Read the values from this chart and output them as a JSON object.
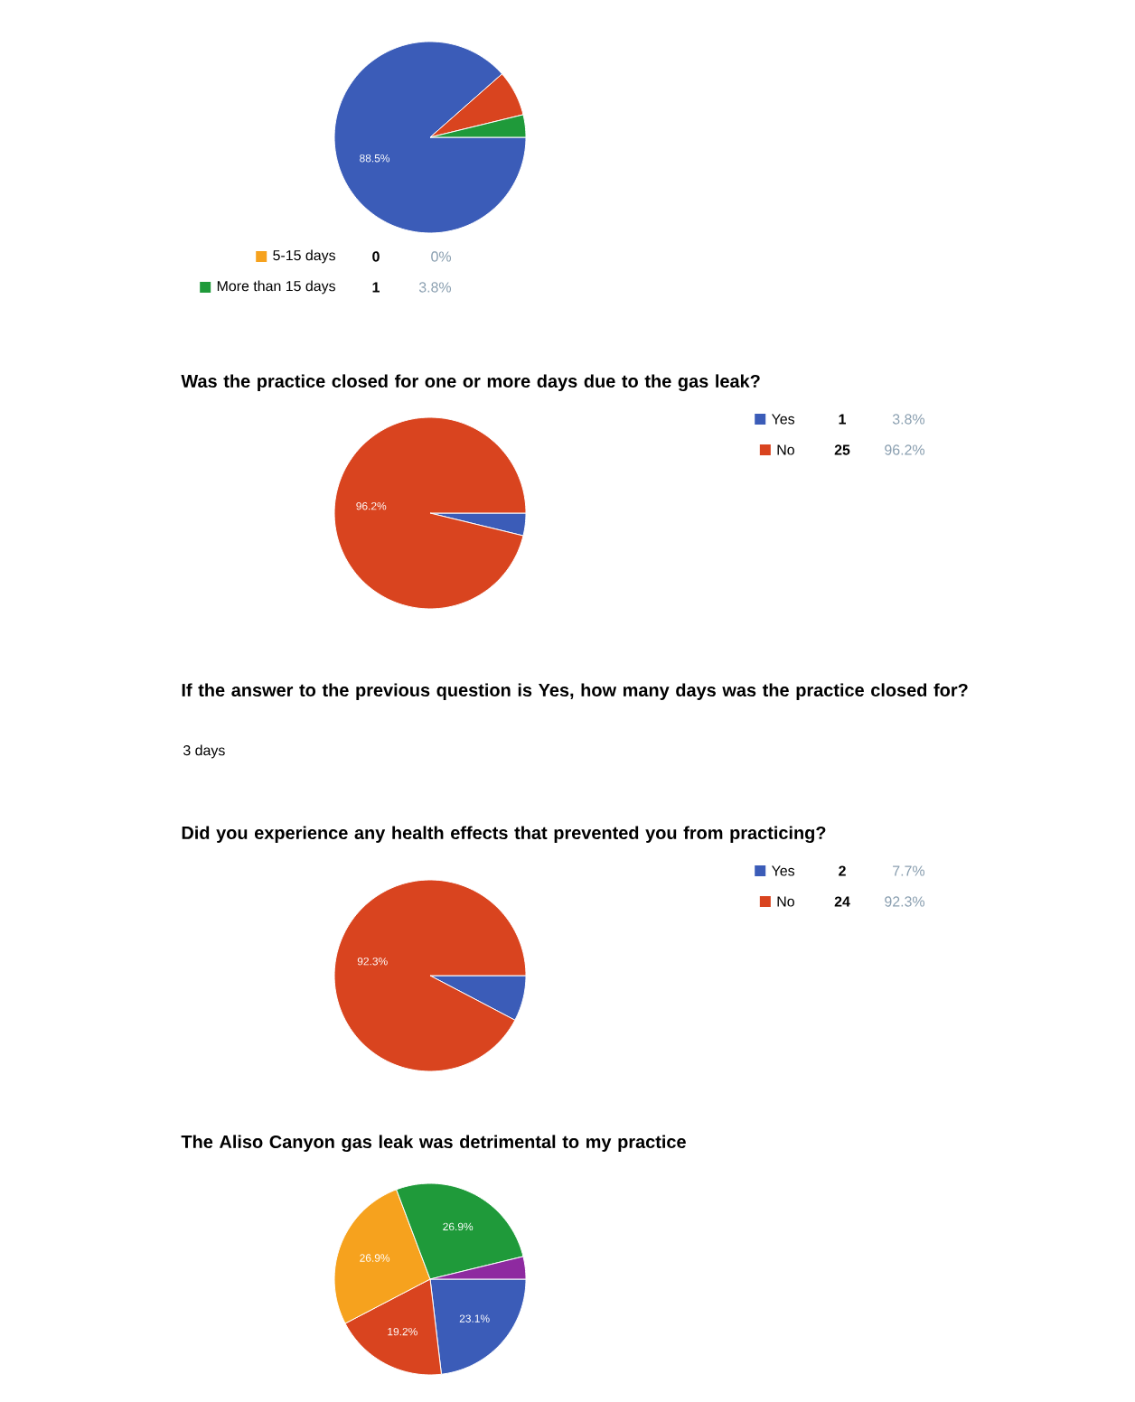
{
  "chart_data": [
    {
      "type": "pie",
      "categories": [
        null,
        null,
        "5-15 days",
        "More than 15 days"
      ],
      "values": [
        88.5,
        7.7,
        0,
        3.8
      ],
      "colors": [
        "#3b5cb8",
        "#d9441f",
        "#f6a21e",
        "#1f9a3a"
      ],
      "value_labels": [
        "88.5%",
        null,
        "0%",
        "3.8%"
      ],
      "annotations": [
        "0",
        "1"
      ],
      "legend": "bottom"
    },
    {
      "type": "pie",
      "title": "Was the practice closed for one or more days due to the gas leak?",
      "categories": [
        "Yes",
        "No"
      ],
      "values": [
        3.8,
        96.2
      ],
      "colors": [
        "#3b5cb8",
        "#d9441f"
      ],
      "value_labels": [
        "3.8%",
        "96.2%"
      ],
      "annotations": [
        "1",
        "25"
      ],
      "legend": "right"
    },
    {
      "type": "other",
      "title": "If the answer to the previous question is Yes, how many days was the practice closed for?",
      "annotations": [
        "3 days"
      ]
    },
    {
      "type": "pie",
      "title": "Did you experience any health effects that prevented you from practicing?",
      "categories": [
        "Yes",
        "No"
      ],
      "values": [
        7.7,
        92.3
      ],
      "colors": [
        "#3b5cb8",
        "#d9441f"
      ],
      "value_labels": [
        "7.7%",
        "92.3%"
      ],
      "annotations": [
        "2",
        "24"
      ],
      "legend": "right"
    },
    {
      "type": "pie",
      "title": "The Aliso Canyon gas leak was detrimental to my practice",
      "categories": [
        null,
        null,
        null,
        null,
        null
      ],
      "values": [
        23.1,
        19.2,
        26.9,
        26.9,
        3.8
      ],
      "colors": [
        "#3b5cb8",
        "#d9441f",
        "#f6a21e",
        "#1f9a3a",
        "#8e2aa0"
      ],
      "value_labels": [
        "23.1%",
        "19.2%",
        "26.9%",
        "26.9%",
        null
      ]
    }
  ]
}
